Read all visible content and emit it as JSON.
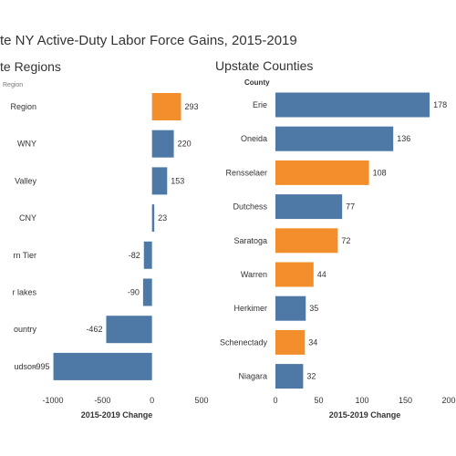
{
  "title": "te NY Active-Duty Labor Force Gains, 2015-2019",
  "colors": {
    "blue": "#4e79a7",
    "orange": "#f28e2b"
  },
  "chart_data": [
    {
      "type": "bar",
      "orientation": "horizontal",
      "title": "te Regions",
      "column_header": "Region",
      "xlabel": "2015-2019 Change",
      "xlim": [
        -1000,
        500
      ],
      "xticks": [
        -1000,
        -500,
        0,
        500
      ],
      "grid": false,
      "categories": [
        "Region",
        "WNY",
        "Valley",
        "CNY",
        "rn Tier",
        "r lakes",
        "ountry",
        "udson"
      ],
      "values": [
        293,
        220,
        153,
        23,
        -82,
        -90,
        -462,
        -995
      ],
      "highlight": [
        true,
        false,
        false,
        false,
        false,
        false,
        false,
        false
      ]
    },
    {
      "type": "bar",
      "orientation": "horizontal",
      "title": "Upstate Counties",
      "column_header": "County",
      "xlabel": "2015-2019 Change",
      "xlim": [
        0,
        200
      ],
      "xticks": [
        0,
        50,
        100,
        150,
        200
      ],
      "xtick_labels": [
        "0",
        "50",
        "100",
        "150",
        "200"
      ],
      "grid": false,
      "categories": [
        "Erie",
        "Oneida",
        "Rensselaer",
        "Dutchess",
        "Saratoga",
        "Warren",
        "Herkimer",
        "Schenectady",
        "Niagara"
      ],
      "values": [
        178,
        136,
        108,
        77,
        72,
        44,
        35,
        34,
        32
      ],
      "highlight": [
        false,
        false,
        true,
        false,
        true,
        true,
        false,
        true,
        false
      ]
    }
  ]
}
